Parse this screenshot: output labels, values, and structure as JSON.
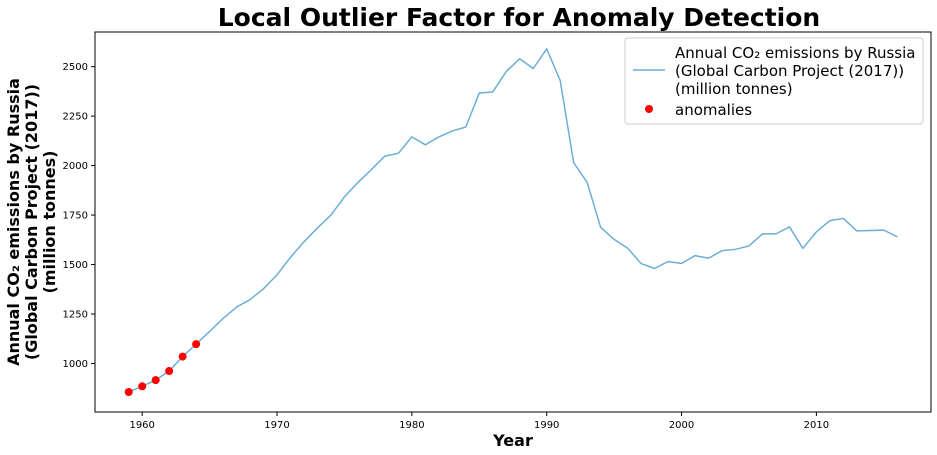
{
  "chart_data": {
    "type": "line",
    "title": "Local Outlier Factor for Anomaly Detection",
    "xlabel": "Year",
    "ylabel": [
      "Annual CO₂ emissions by Russia",
      "(Global Carbon Project (2017))",
      "(million tonnes)"
    ],
    "xlim": [
      1956.5,
      2018.5
    ],
    "ylim": [
      755,
      2675
    ],
    "xticks": [
      1960,
      1970,
      1980,
      1990,
      2000,
      2010
    ],
    "yticks": [
      1000,
      1250,
      1500,
      1750,
      2000,
      2250,
      2500
    ],
    "grid": false,
    "legend_position": "top-right",
    "series": [
      {
        "name": [
          "Annual CO₂ emissions by Russia",
          "(Global Carbon Project (2017))",
          "(million tonnes)"
        ],
        "color": "#6baed6",
        "x": [
          1959,
          1960,
          1961,
          1962,
          1963,
          1964,
          1965,
          1966,
          1967,
          1968,
          1969,
          1970,
          1971,
          1972,
          1973,
          1974,
          1975,
          1976,
          1977,
          1978,
          1979,
          1980,
          1981,
          1982,
          1983,
          1984,
          1985,
          1986,
          1987,
          1988,
          1989,
          1990,
          1991,
          1992,
          1993,
          1994,
          1995,
          1996,
          1997,
          1998,
          1999,
          2000,
          2001,
          2002,
          2003,
          2004,
          2005,
          2006,
          2007,
          2008,
          2009,
          2010,
          2011,
          2012,
          2013,
          2014,
          2015,
          2016
        ],
        "y": [
          856,
          885,
          916,
          962,
          1035,
          1098,
          1162,
          1228,
          1285,
          1323,
          1378,
          1448,
          1537,
          1615,
          1685,
          1750,
          1842,
          1915,
          1980,
          2048,
          2062,
          2145,
          2105,
          2145,
          2175,
          2195,
          2367,
          2372,
          2475,
          2540,
          2490,
          2590,
          2430,
          2015,
          1915,
          1688,
          1627,
          1583,
          1505,
          1480,
          1515,
          1506,
          1545,
          1532,
          1570,
          1577,
          1594,
          1655,
          1655,
          1690,
          1582,
          1665,
          1722,
          1733,
          1670,
          1672,
          1674,
          1640
        ]
      }
    ],
    "anomalies": {
      "name": "anomalies",
      "color": "#ff0000",
      "x": [
        1959,
        1960,
        1961,
        1962,
        1963,
        1964
      ],
      "y": [
        856,
        885,
        916,
        962,
        1035,
        1098
      ]
    }
  }
}
